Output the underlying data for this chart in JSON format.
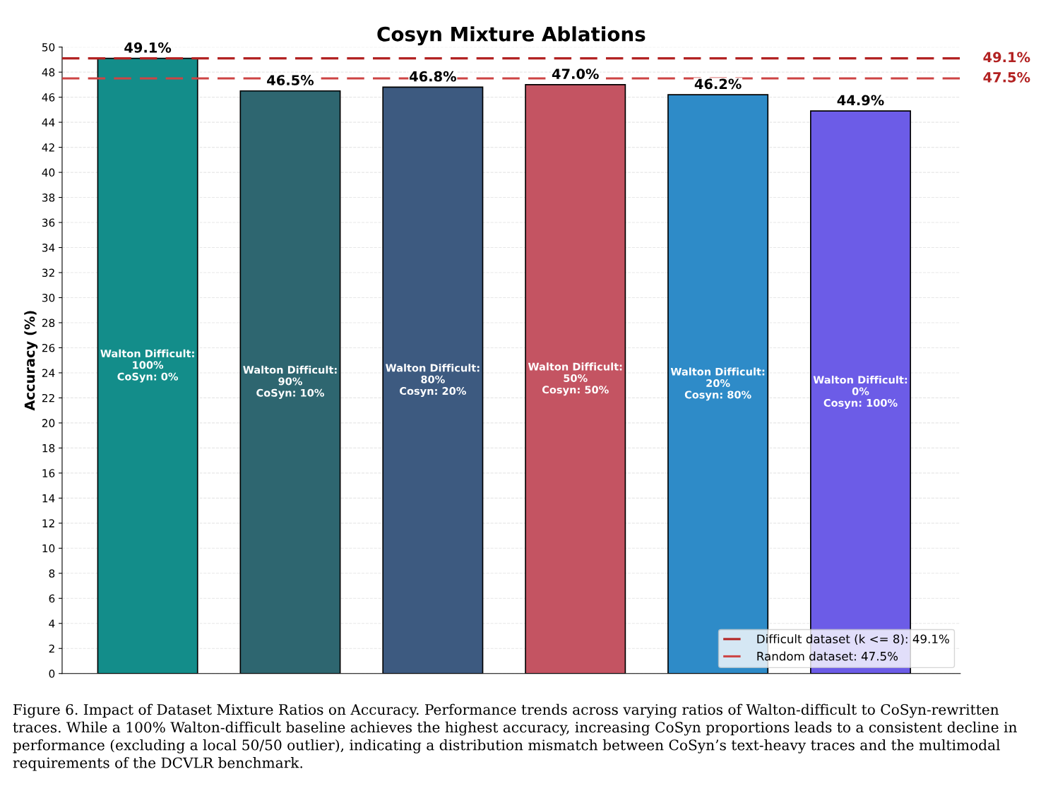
{
  "chart_data": {
    "type": "bar",
    "title": "Cosyn Mixture Ablations",
    "ylabel": "Accuracy (%)",
    "categories": [
      "Walton Difficult:\n100%\nCoSyn: 0%",
      "Walton Difficult:\n90%\nCoSyn: 10%",
      "Walton Difficult:\n80%\nCosyn: 20%",
      "Walton Difficult:\n50%\nCosyn: 50%",
      "Walton Difficult:\n20%\nCosyn: 80%",
      "Walton Difficult:\n0%\nCosyn: 100%"
    ],
    "values": [
      49.1,
      46.5,
      46.8,
      47.0,
      46.2,
      44.9
    ],
    "value_labels": [
      "49.1%",
      "46.5%",
      "46.8%",
      "47.0%",
      "46.2%",
      "44.9%"
    ],
    "colors": [
      "#138d8a",
      "#2e6670",
      "#3d5a80",
      "#c45462",
      "#2e8bc8",
      "#6c5ce7"
    ],
    "ylim": [
      0,
      50
    ],
    "yticks": [
      0,
      2,
      4,
      6,
      8,
      10,
      12,
      14,
      16,
      18,
      20,
      22,
      24,
      26,
      28,
      30,
      32,
      34,
      36,
      38,
      40,
      42,
      44,
      46,
      48,
      50
    ],
    "grid": "y",
    "legend": "bottom right",
    "ref_lines": [
      {
        "axis": "y",
        "value": 49.1,
        "label": "Difficult dataset (k <= 8): 49.1%",
        "color": "#b22222",
        "line_style": "dashed"
      },
      {
        "axis": "y",
        "value": 47.5,
        "label": "Random dataset: 47.5%",
        "color": "#cd4444",
        "line_style": "dashed"
      }
    ],
    "annotations": [
      "49.1%",
      "47.5%",
      "Figure 6. Impact of Dataset Mixture Ratios on Accuracy. Performance trends across varying ratios of Walton-difficult to CoSyn-rewritten traces. While a 100% Walton-difficult baseline achieves the highest accuracy, increasing CoSyn proportions leads to a consistent decline in performance (excluding a local 50/50 outlier), indicating a distribution mismatch between CoSyn’s text-heavy traces and the multimodal requirements of the DCVLR benchmark."
    ]
  }
}
